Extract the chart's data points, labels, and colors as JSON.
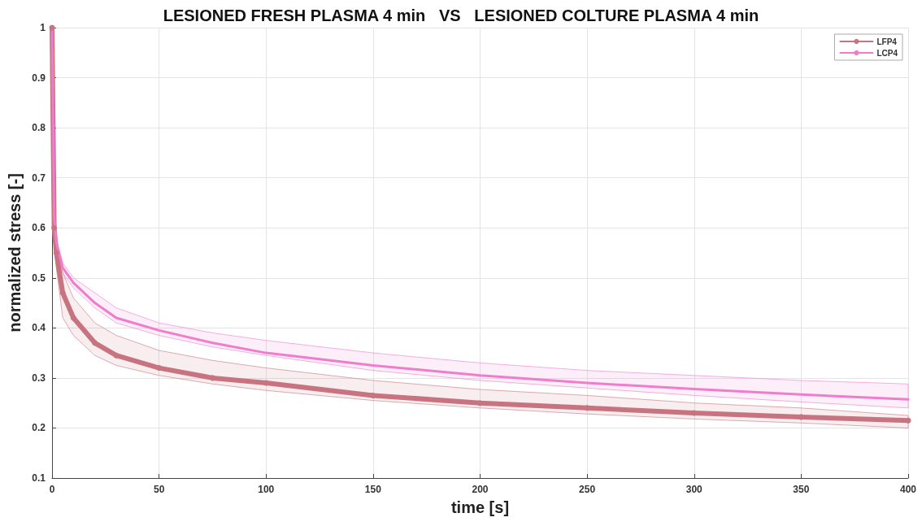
{
  "chart_data": {
    "type": "line",
    "title": "LESIONED FRESH PLASMA 4 min   VS   LESIONED COLTURE PLASMA 4 min",
    "xlabel": "time [s]",
    "ylabel": "normalized stress [-]",
    "x": [
      0,
      1,
      2,
      5,
      10,
      20,
      30,
      50,
      75,
      100,
      150,
      200,
      250,
      300,
      350,
      400
    ],
    "series": [
      {
        "name": "LFP4",
        "color": "#c87480",
        "marker": "circle",
        "values": [
          1.0,
          0.6,
          0.55,
          0.47,
          0.42,
          0.37,
          0.345,
          0.32,
          0.3,
          0.29,
          0.265,
          0.25,
          0.24,
          0.23,
          0.222,
          0.215
        ],
        "lower": [
          1.0,
          0.58,
          0.52,
          0.42,
          0.385,
          0.345,
          0.325,
          0.305,
          0.288,
          0.275,
          0.255,
          0.24,
          0.228,
          0.218,
          0.21,
          0.2
        ],
        "upper": [
          1.0,
          0.62,
          0.58,
          0.51,
          0.46,
          0.41,
          0.385,
          0.355,
          0.335,
          0.32,
          0.295,
          0.277,
          0.265,
          0.25,
          0.24,
          0.225
        ]
      },
      {
        "name": "LCP4",
        "color": "#f07ccc",
        "marker": "none",
        "values": [
          1.0,
          0.62,
          0.57,
          0.52,
          0.49,
          0.45,
          0.42,
          0.395,
          0.37,
          0.35,
          0.325,
          0.305,
          0.29,
          0.278,
          0.267,
          0.257
        ],
        "lower": [
          1.0,
          0.61,
          0.56,
          0.51,
          0.48,
          0.44,
          0.41,
          0.385,
          0.362,
          0.345,
          0.315,
          0.295,
          0.28,
          0.265,
          0.252,
          0.24
        ],
        "upper": [
          1.0,
          0.63,
          0.58,
          0.53,
          0.5,
          0.47,
          0.44,
          0.41,
          0.39,
          0.375,
          0.35,
          0.33,
          0.315,
          0.305,
          0.295,
          0.288
        ]
      }
    ],
    "xlim": [
      0,
      400
    ],
    "xticks": [
      0,
      50,
      100,
      150,
      200,
      250,
      300,
      350,
      400
    ],
    "ylim": [
      0.1,
      1
    ],
    "yticks": [
      0.1,
      0.2,
      0.3,
      0.4,
      0.5,
      0.6,
      0.7,
      0.8,
      0.9,
      1
    ],
    "grid": true,
    "legend": "top right",
    "line_style": "solid"
  }
}
